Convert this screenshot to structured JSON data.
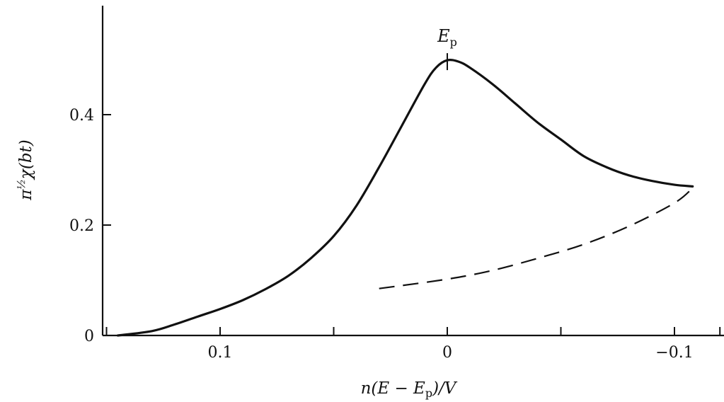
{
  "chart_data": {
    "type": "line",
    "title": "",
    "xlabel": "n(E − Ep)/V",
    "xlabel_parts": {
      "pre": "n(E − E",
      "sub": "p",
      "post": ")/V"
    },
    "ylabel": "π½χ(bt)",
    "ylabel_parts": {
      "pi": "π",
      "exp": "½",
      "rest": "χ(bt)"
    },
    "x_reversed": true,
    "xlim": [
      0.15,
      -0.12
    ],
    "ylim": [
      0,
      0.5
    ],
    "x_ticks": [
      0.15,
      0.1,
      0.05,
      0,
      -0.05,
      -0.1,
      -0.12
    ],
    "x_tick_labels": [
      {
        "value": 0.1,
        "label": "0.1"
      },
      {
        "value": 0,
        "label": "0"
      },
      {
        "value": -0.1,
        "label": "−0.1"
      }
    ],
    "y_tick_labels": [
      {
        "value": 0,
        "label": "0"
      },
      {
        "value": 0.2,
        "label": "0.2"
      },
      {
        "value": 0.4,
        "label": "0.4"
      }
    ],
    "annotation": {
      "text_main": "E",
      "text_sub": "p",
      "x": 0,
      "y": 0.4986
    },
    "series": [
      {
        "style": "solid",
        "points": [
          [
            0.145,
            0.0
          ],
          [
            0.13,
            0.008
          ],
          [
            0.12,
            0.02
          ],
          [
            0.11,
            0.034
          ],
          [
            0.1,
            0.048
          ],
          [
            0.09,
            0.064
          ],
          [
            0.08,
            0.084
          ],
          [
            0.07,
            0.108
          ],
          [
            0.06,
            0.14
          ],
          [
            0.05,
            0.18
          ],
          [
            0.04,
            0.235
          ],
          [
            0.03,
            0.305
          ],
          [
            0.02,
            0.38
          ],
          [
            0.01,
            0.455
          ],
          [
            0.005,
            0.485
          ],
          [
            0.0,
            0.4986
          ],
          [
            -0.005,
            0.496
          ],
          [
            -0.01,
            0.485
          ],
          [
            -0.02,
            0.455
          ],
          [
            -0.03,
            0.42
          ],
          [
            -0.04,
            0.385
          ],
          [
            -0.05,
            0.355
          ],
          [
            -0.06,
            0.325
          ],
          [
            -0.07,
            0.305
          ],
          [
            -0.08,
            0.29
          ],
          [
            -0.09,
            0.28
          ],
          [
            -0.1,
            0.273
          ],
          [
            -0.108,
            0.27
          ]
        ]
      },
      {
        "style": "dashed",
        "points": [
          [
            0.03,
            0.085
          ],
          [
            0.0,
            0.102
          ],
          [
            -0.02,
            0.118
          ],
          [
            -0.04,
            0.14
          ],
          [
            -0.06,
            0.165
          ],
          [
            -0.08,
            0.198
          ],
          [
            -0.1,
            0.24
          ],
          [
            -0.108,
            0.267
          ]
        ]
      }
    ]
  }
}
